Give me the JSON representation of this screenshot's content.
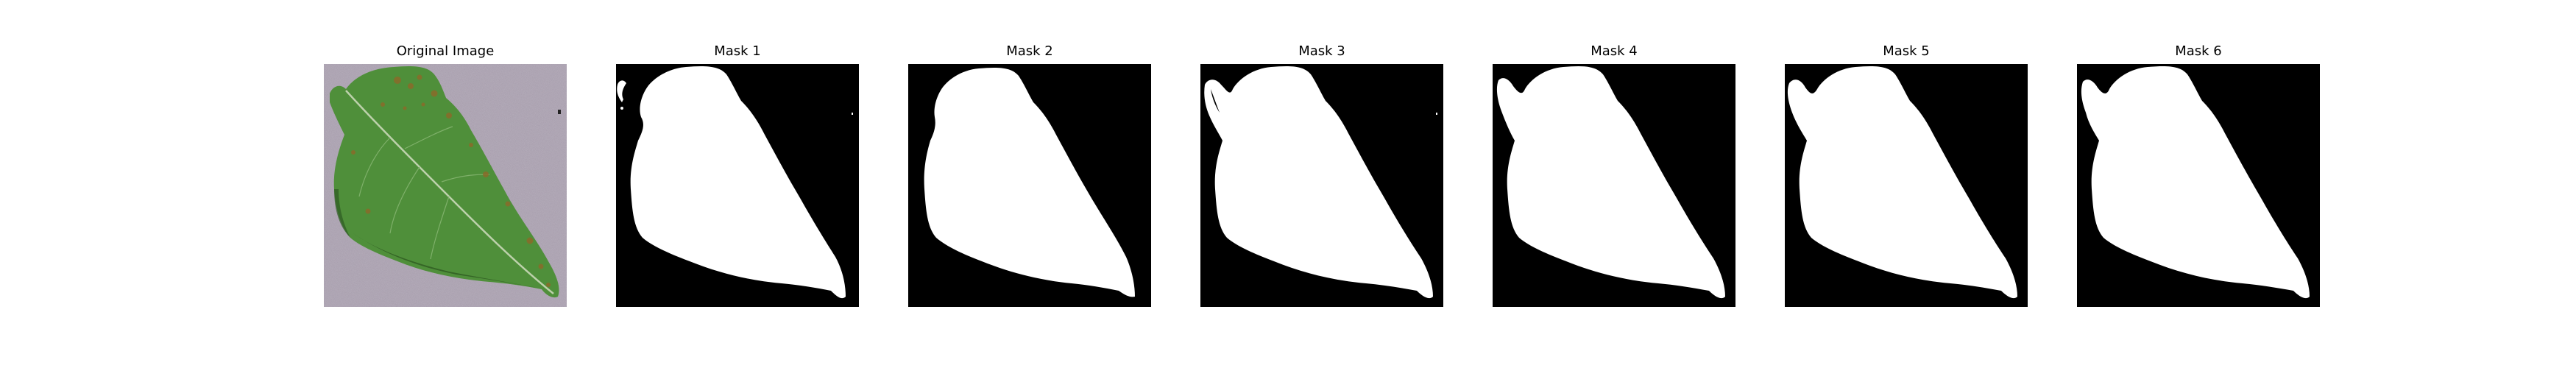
{
  "figure": {
    "panels": [
      {
        "title": "Original Image",
        "kind": "photo",
        "image": "tomato-leaf-photo"
      },
      {
        "title": "Mask 1",
        "kind": "mask",
        "image": "leaf-mask"
      },
      {
        "title": "Mask 2",
        "kind": "mask",
        "image": "leaf-mask"
      },
      {
        "title": "Mask 3",
        "kind": "mask",
        "image": "leaf-mask"
      },
      {
        "title": "Mask 4",
        "kind": "mask",
        "image": "leaf-mask"
      },
      {
        "title": "Mask 5",
        "kind": "mask",
        "image": "leaf-mask"
      },
      {
        "title": "Mask 6",
        "kind": "mask",
        "image": "leaf-mask"
      }
    ],
    "colors": {
      "page_background": "#ffffff",
      "mask_background": "#000000",
      "mask_foreground": "#ffffff",
      "photo_background": "#a49aa9",
      "leaf_green": "#4f8f3a",
      "leaf_dark": "#2e5a22",
      "lesion_brown": "#8a6b2a",
      "vein": "#c9d8b8"
    }
  }
}
